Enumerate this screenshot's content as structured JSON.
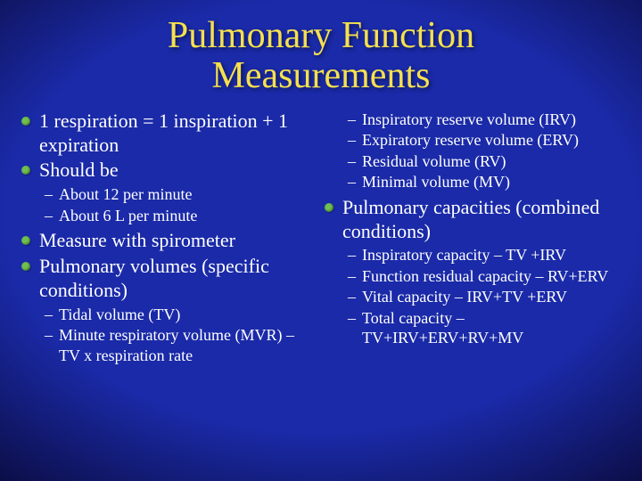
{
  "title_line1": "Pulmonary Function",
  "title_line2": "Measurements",
  "left": {
    "b1": "1 respiration = 1 inspiration + 1 expiration",
    "b2": "Should be",
    "b2_sub1": "About 12 per minute",
    "b2_sub2": "About 6 L per minute",
    "b3": "Measure with spirometer",
    "b4": "Pulmonary volumes (specific conditions)",
    "b4_sub1": "Tidal volume (TV)",
    "b4_sub2": "Minute respiratory volume (MVR) – TV x respiration rate"
  },
  "right": {
    "r_sub1": "Inspiratory reserve volume (IRV)",
    "r_sub2": "Expiratory reserve volume (ERV)",
    "r_sub3": "Residual volume (RV)",
    "r_sub4": "Minimal volume (MV)",
    "b1": "Pulmonary capacities (combined conditions)",
    "b1_sub1": "Inspiratory capacity – TV +IRV",
    "b1_sub2": "Function residual capacity – RV+ERV",
    "b1_sub3": "Vital capacity – IRV+TV +ERV",
    "b1_sub4": "Total capacity – TV+IRV+ERV+RV+MV"
  },
  "colors": {
    "title": "#f5e050",
    "bullet": "#70c050",
    "text": "#ffffff",
    "bg_center": "#1a2aa8",
    "bg_edge": "#000015"
  }
}
